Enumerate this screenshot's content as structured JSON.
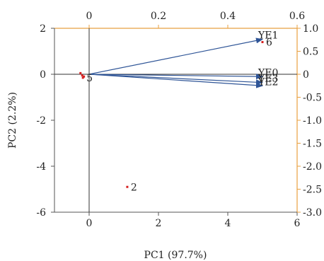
{
  "chart_data": {
    "type": "scatter",
    "subtype": "pca-biplot",
    "title": "",
    "xlabel": "PC1 (97.7%)",
    "ylabel": "PC2 (2.2%)",
    "xlim": [
      -1,
      6
    ],
    "ylim": [
      -6,
      2
    ],
    "xticks": [
      "0",
      "2",
      "4",
      "6"
    ],
    "xtick_values": [
      0,
      2,
      4,
      6
    ],
    "yticks": [
      "-6",
      "-4",
      "-2",
      "0",
      "2"
    ],
    "ytick_values": [
      -6,
      -4,
      -2,
      0,
      2
    ],
    "top_axis": {
      "xlim": [
        -0.1,
        0.6
      ],
      "ticks": [
        "0",
        "0.2",
        "0.4",
        "0.6"
      ],
      "tick_values": [
        0,
        0.2,
        0.4,
        0.6
      ]
    },
    "right_axis": {
      "ylim": [
        -3.0,
        1.0
      ],
      "ticks": [
        "1.0",
        "0.5",
        "0",
        "-0.5",
        "-1.0",
        "-1.5",
        "-2.0",
        "-2.5",
        "-3.0"
      ],
      "tick_values": [
        1.0,
        0.5,
        0,
        -0.5,
        -1.0,
        -1.5,
        -2.0,
        -2.5,
        -3.0
      ]
    },
    "grid": false,
    "scores": [
      {
        "label": "6",
        "x": 5.0,
        "y": 1.4
      },
      {
        "label": "2",
        "x": 1.1,
        "y": -4.9
      },
      {
        "label": "5",
        "x": -0.18,
        "y": -0.15
      },
      {
        "label": "",
        "x": -0.25,
        "y": 0.05
      },
      {
        "label": "",
        "x": -0.2,
        "y": -0.05
      },
      {
        "label": "",
        "x": -0.15,
        "y": -0.1
      }
    ],
    "loadings": [
      {
        "name": "YE1",
        "x": 0.5,
        "y": 0.76
      },
      {
        "name": "YE0",
        "x": 0.5,
        "y": -0.05
      },
      {
        "name": "YE3",
        "x": 0.5,
        "y": -0.18
      },
      {
        "name": "YE2",
        "x": 0.5,
        "y": -0.25
      }
    ],
    "colors": {
      "scores": "#d62020",
      "loadings": "#2f5597",
      "axis": "#000000",
      "top_right_frame": "#e8a040"
    }
  }
}
